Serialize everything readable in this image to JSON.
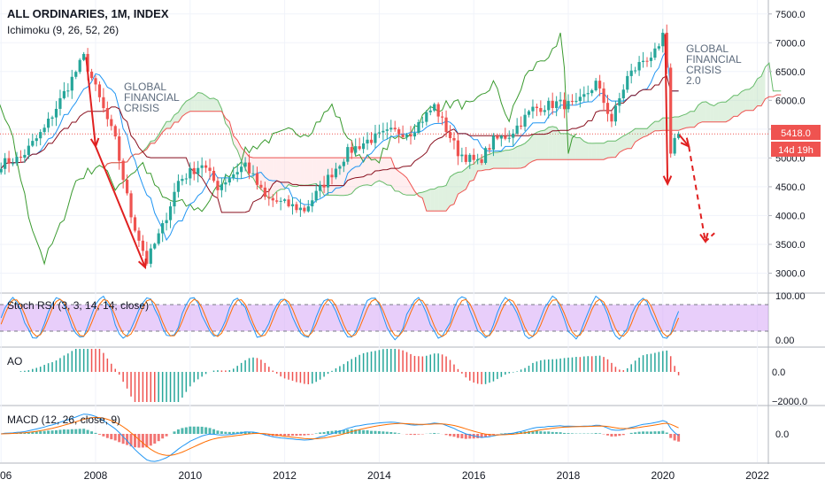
{
  "header": {
    "title": "ALL ORDINARIES, 1M, INDEX",
    "indicator": "Ichimoku (9, 26, 52, 26)"
  },
  "annotations": {
    "gfc1": [
      "GLOBAL",
      "FINANCIAL",
      "CRISIS"
    ],
    "gfc2": [
      "GLOBAL",
      "FINANCIAL",
      "CRISIS",
      "2.0"
    ]
  },
  "price_tag": {
    "value": "5418.0",
    "countdown": "14d 19h"
  },
  "colors": {
    "up": "#26a69a",
    "down": "#ef5350",
    "tenkan": "#2196f3",
    "kijun": "#880e1d",
    "chikou": "#3a9a2f",
    "cloud_bull": "#a5d6a7",
    "cloud_bear": "#ffcdd2",
    "arrow": "#e02020",
    "rsi_band": "#d6a5f5"
  },
  "chart_data": [
    {
      "type": "candlestick",
      "title": "ALL ORDINARIES, 1M, INDEX",
      "interval": "1M",
      "x_axis": {
        "ticks": [
          "06",
          "2008",
          "2010",
          "2012",
          "2014",
          "2016",
          "2018",
          "2020",
          "2022"
        ]
      },
      "y_axis": {
        "ticks": [
          "3000.0",
          "3500.0",
          "4000.0",
          "4500.0",
          "5000.0",
          "5500.0",
          "6000.0",
          "6500.0",
          "7000.0",
          "7500.0"
        ],
        "range": [
          2700,
          7650
        ],
        "side": "right"
      },
      "last_price": 5418.0,
      "price_path": [
        [
          "2006-01",
          4900
        ],
        [
          "2006-06",
          5000
        ],
        [
          "2006-12",
          5500
        ],
        [
          "2007-04",
          6000
        ],
        [
          "2007-10",
          6750
        ],
        [
          "2008-01",
          6200
        ],
        [
          "2008-06",
          5300
        ],
        [
          "2008-10",
          4000
        ],
        [
          "2009-02",
          3200
        ],
        [
          "2009-06",
          3800
        ],
        [
          "2009-10",
          4600
        ],
        [
          "2010-04",
          4900
        ],
        [
          "2010-08",
          4500
        ],
        [
          "2011-03",
          4900
        ],
        [
          "2011-08",
          4300
        ],
        [
          "2012-01",
          4200
        ],
        [
          "2012-06",
          4100
        ],
        [
          "2012-12",
          4650
        ],
        [
          "2013-05",
          5100
        ],
        [
          "2013-10",
          5300
        ],
        [
          "2014-04",
          5450
        ],
        [
          "2014-09",
          5450
        ],
        [
          "2015-03",
          5900
        ],
        [
          "2015-06",
          5500
        ],
        [
          "2015-09",
          5100
        ],
        [
          "2016-02",
          4900
        ],
        [
          "2016-06",
          5300
        ],
        [
          "2016-10",
          5400
        ],
        [
          "2017-04",
          5850
        ],
        [
          "2017-10",
          5950
        ],
        [
          "2018-03",
          5900
        ],
        [
          "2018-08",
          6300
        ],
        [
          "2018-12",
          5650
        ],
        [
          "2019-04",
          6400
        ],
        [
          "2019-08",
          6700
        ],
        [
          "2019-12",
          6850
        ],
        [
          "2020-01",
          7150
        ],
        [
          "2020-02",
          6500
        ],
        [
          "2020-03",
          5000
        ],
        [
          "2020-04",
          5400
        ],
        [
          "2020-05",
          5418
        ]
      ],
      "ichimoku": {
        "params": [
          9,
          26,
          52,
          26
        ]
      }
    },
    {
      "type": "line",
      "title": "Stoch RSI (3, 3, 14, 14, close)",
      "y_axis": {
        "ticks": [
          "100.00",
          "0.00"
        ]
      },
      "bands": [
        80,
        20
      ]
    },
    {
      "type": "bar",
      "title": "AO",
      "y_axis": {
        "ticks": [
          "0.0",
          "−2000.0"
        ]
      }
    },
    {
      "type": "bar",
      "title": "MACD (12, 26, close, 9)",
      "y_axis": {
        "ticks": [
          "0.0"
        ]
      }
    }
  ]
}
